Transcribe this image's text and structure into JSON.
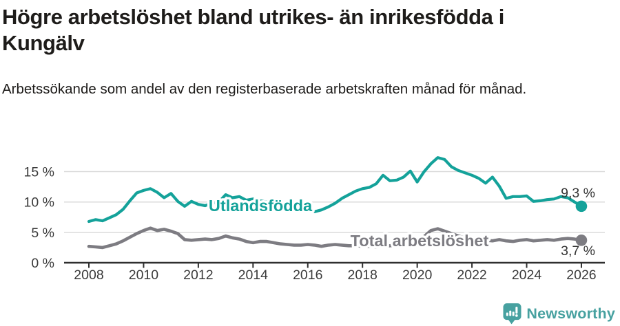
{
  "title": "Högre arbetslöshet bland utrikes- än inrikesfödda i Kungälv",
  "subtitle": "Arbetssökande som andel av den registerbaserade arbetskraften månad för månad.",
  "branding": {
    "name": "Newsworthy",
    "icon": "newsworthy-chart-bubble-icon",
    "color": "#47a1a0"
  },
  "colors": {
    "foreign_born_line": "#14a29a",
    "total_line": "#7d7c82",
    "grid": "#d9d9d9",
    "axis": "#2f2f2f",
    "tick_text": "#3a3a3a",
    "value_label_text": "#333333"
  },
  "chart_data": {
    "type": "line",
    "title": "Högre arbetslöshet bland utrikes- än inrikesfödda i Kungälv",
    "subtitle": "Arbetssökande som andel av den registerbaserade arbetskraften månad för månad.",
    "xlabel": "",
    "ylabel": "",
    "grid": "horizontal",
    "legend_position": "inline-labels-on-lines",
    "x_axis": {
      "ticks": [
        2008,
        2010,
        2012,
        2014,
        2016,
        2018,
        2020,
        2022,
        2024,
        2026
      ],
      "range": [
        2007.1,
        2026.85
      ]
    },
    "y_axis": {
      "tick_labels": [
        "0 %",
        "5 %",
        "10 %",
        "15 %"
      ],
      "tick_values": [
        0,
        5,
        10,
        15
      ],
      "range": [
        0,
        18.5
      ],
      "unit": "%"
    },
    "series": [
      {
        "name": "Utlandsfödda",
        "color": "#14a29a",
        "end_label": "9,3 %",
        "end_value": 9.3,
        "points": [
          [
            2008,
            6.8
          ],
          [
            2008.25,
            7.1
          ],
          [
            2008.5,
            6.9
          ],
          [
            2008.75,
            7.4
          ],
          [
            2009,
            7.9
          ],
          [
            2009.25,
            8.8
          ],
          [
            2009.5,
            10.2
          ],
          [
            2009.75,
            11.5
          ],
          [
            2010,
            11.9
          ],
          [
            2010.25,
            12.2
          ],
          [
            2010.5,
            11.6
          ],
          [
            2010.75,
            10.7
          ],
          [
            2011,
            11.4
          ],
          [
            2011.25,
            10.1
          ],
          [
            2011.5,
            9.3
          ],
          [
            2011.75,
            10.1
          ],
          [
            2012,
            9.6
          ],
          [
            2012.25,
            9.4
          ],
          [
            2012.5,
            9.8
          ],
          [
            2012.75,
            10.0
          ],
          [
            2013,
            11.2
          ],
          [
            2013.25,
            10.7
          ],
          [
            2013.5,
            10.9
          ],
          [
            2013.75,
            10.3
          ],
          [
            2014,
            10.5
          ],
          [
            2014.25,
            10.2
          ],
          [
            2014.5,
            10.0
          ],
          [
            2014.75,
            9.8
          ],
          [
            2015,
            9.6
          ],
          [
            2015.25,
            9.3
          ],
          [
            2015.5,
            9.0
          ],
          [
            2015.75,
            8.8
          ],
          [
            2016,
            8.6
          ],
          [
            2016.25,
            8.4
          ],
          [
            2016.5,
            8.7
          ],
          [
            2016.75,
            9.2
          ],
          [
            2017,
            9.8
          ],
          [
            2017.25,
            10.6
          ],
          [
            2017.5,
            11.2
          ],
          [
            2017.75,
            11.8
          ],
          [
            2018,
            12.2
          ],
          [
            2018.25,
            12.4
          ],
          [
            2018.5,
            13.0
          ],
          [
            2018.75,
            14.4
          ],
          [
            2019,
            13.5
          ],
          [
            2019.25,
            13.6
          ],
          [
            2019.5,
            14.1
          ],
          [
            2019.75,
            15.1
          ],
          [
            2020,
            13.3
          ],
          [
            2020.25,
            15.0
          ],
          [
            2020.5,
            16.3
          ],
          [
            2020.75,
            17.3
          ],
          [
            2021,
            17.0
          ],
          [
            2021.25,
            15.8
          ],
          [
            2021.5,
            15.2
          ],
          [
            2021.75,
            14.8
          ],
          [
            2022,
            14.4
          ],
          [
            2022.25,
            13.9
          ],
          [
            2022.5,
            13.1
          ],
          [
            2022.75,
            14.1
          ],
          [
            2023,
            12.6
          ],
          [
            2023.25,
            10.6
          ],
          [
            2023.5,
            10.9
          ],
          [
            2023.75,
            10.9
          ],
          [
            2024,
            11.0
          ],
          [
            2024.25,
            10.1
          ],
          [
            2024.5,
            10.2
          ],
          [
            2024.75,
            10.4
          ],
          [
            2025,
            10.5
          ],
          [
            2025.25,
            10.9
          ],
          [
            2025.5,
            10.7
          ],
          [
            2025.75,
            10.0
          ],
          [
            2026,
            9.3
          ]
        ]
      },
      {
        "name": "Total arbetslöshet",
        "color": "#7d7c82",
        "end_label": "3,7 %",
        "end_value": 3.7,
        "points": [
          [
            2008,
            2.7
          ],
          [
            2008.25,
            2.6
          ],
          [
            2008.5,
            2.5
          ],
          [
            2008.75,
            2.8
          ],
          [
            2009,
            3.1
          ],
          [
            2009.25,
            3.6
          ],
          [
            2009.5,
            4.2
          ],
          [
            2009.75,
            4.8
          ],
          [
            2010,
            5.3
          ],
          [
            2010.25,
            5.7
          ],
          [
            2010.5,
            5.3
          ],
          [
            2010.75,
            5.5
          ],
          [
            2011,
            5.2
          ],
          [
            2011.25,
            4.8
          ],
          [
            2011.5,
            3.8
          ],
          [
            2011.75,
            3.7
          ],
          [
            2012,
            3.8
          ],
          [
            2012.25,
            3.9
          ],
          [
            2012.5,
            3.8
          ],
          [
            2012.75,
            4.0
          ],
          [
            2013,
            4.4
          ],
          [
            2013.25,
            4.1
          ],
          [
            2013.5,
            3.9
          ],
          [
            2013.75,
            3.5
          ],
          [
            2014,
            3.3
          ],
          [
            2014.25,
            3.5
          ],
          [
            2014.5,
            3.5
          ],
          [
            2014.75,
            3.3
          ],
          [
            2015,
            3.1
          ],
          [
            2015.25,
            3.0
          ],
          [
            2015.5,
            2.9
          ],
          [
            2015.75,
            2.9
          ],
          [
            2016,
            3.0
          ],
          [
            2016.25,
            2.9
          ],
          [
            2016.5,
            2.7
          ],
          [
            2016.75,
            2.9
          ],
          [
            2017,
            3.0
          ],
          [
            2017.25,
            2.9
          ],
          [
            2017.5,
            2.8
          ],
          [
            2017.75,
            2.8
          ],
          [
            2018,
            2.7
          ],
          [
            2018.25,
            2.7
          ],
          [
            2018.5,
            2.6
          ],
          [
            2018.75,
            2.7
          ],
          [
            2019,
            2.8
          ],
          [
            2019.25,
            2.9
          ],
          [
            2019.5,
            3.0
          ],
          [
            2019.75,
            3.1
          ],
          [
            2020,
            3.3
          ],
          [
            2020.25,
            4.3
          ],
          [
            2020.5,
            5.3
          ],
          [
            2020.75,
            5.6
          ],
          [
            2021,
            5.2
          ],
          [
            2021.25,
            4.8
          ],
          [
            2021.5,
            4.4
          ],
          [
            2021.75,
            4.1
          ],
          [
            2022,
            3.9
          ],
          [
            2022.25,
            3.8
          ],
          [
            2022.5,
            3.7
          ],
          [
            2022.75,
            3.6
          ],
          [
            2023,
            3.8
          ],
          [
            2023.25,
            3.6
          ],
          [
            2023.5,
            3.5
          ],
          [
            2023.75,
            3.7
          ],
          [
            2024,
            3.8
          ],
          [
            2024.25,
            3.6
          ],
          [
            2024.5,
            3.7
          ],
          [
            2024.75,
            3.8
          ],
          [
            2025,
            3.7
          ],
          [
            2025.25,
            3.9
          ],
          [
            2025.5,
            4.0
          ],
          [
            2025.75,
            3.9
          ],
          [
            2026,
            3.7
          ]
        ]
      }
    ]
  }
}
